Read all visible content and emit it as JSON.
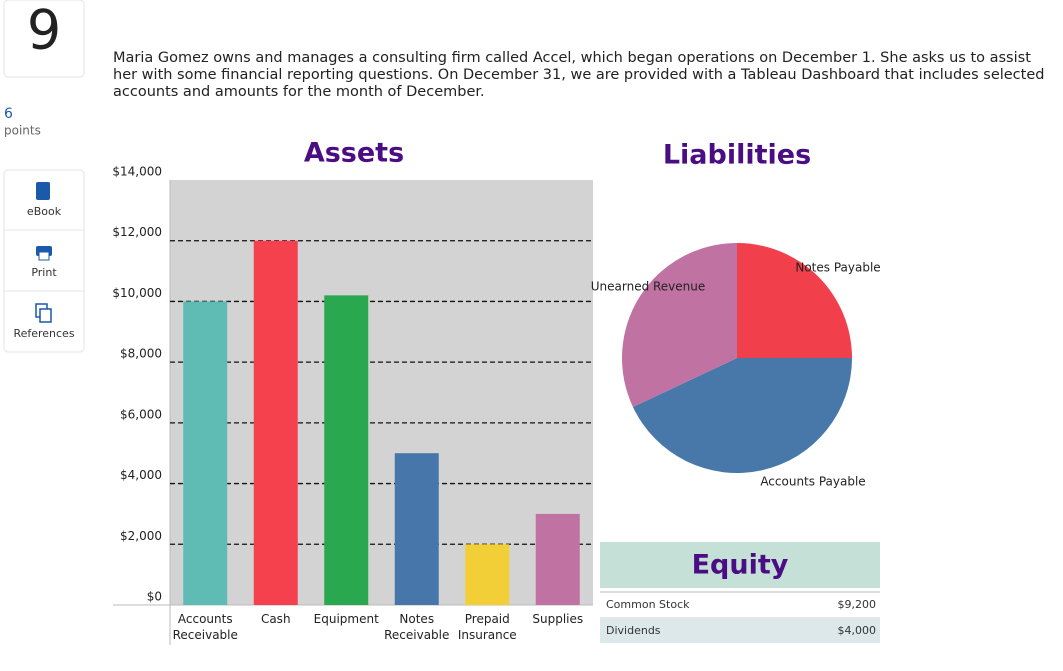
{
  "question": {
    "number": "9",
    "points_value": 6,
    "points_label": "points"
  },
  "tools": [
    "eBook",
    "Print",
    "References"
  ],
  "prompt": "Maria Gomez owns and manages a consulting firm called Accel, which began operations on December 1. She asks us to assist her with some financial reporting questions. On December 31, we are provided with a Tableau Dashboard that includes selected accounts and amounts for the month of December.",
  "chart_data": [
    {
      "type": "bar",
      "title": "Assets",
      "categories": [
        "Accounts Receivable",
        "Cash",
        "Equipment",
        "Notes Receivable",
        "Prepaid Insurance",
        "Supplies"
      ],
      "values": [
        10000,
        12000,
        10200,
        5000,
        2000,
        3000
      ],
      "colors": [
        "#5fbcb5",
        "#f5404e",
        "#2aa84f",
        "#4777aa",
        "#f2cf36",
        "#c072a3"
      ],
      "ylim": [
        0,
        14000
      ],
      "yticks": [
        {
          "value": 0,
          "label": "$0"
        },
        {
          "value": 2000,
          "label": "$2,000"
        },
        {
          "value": 4000,
          "label": "$4,000"
        },
        {
          "value": 6000,
          "label": "$6,000"
        },
        {
          "value": 8000,
          "label": "$8,000"
        },
        {
          "value": 10000,
          "label": "$10,000"
        },
        {
          "value": 12000,
          "label": "$12,000"
        },
        {
          "value": 14000,
          "label": "$14,000"
        }
      ],
      "grid": true
    },
    {
      "type": "pie",
      "title": "Liabilities",
      "categories": [
        "Notes Payable",
        "Accounts Payable",
        "Unearned Revenue"
      ],
      "values": [
        25,
        43,
        32
      ],
      "colors": [
        "#f13f4c",
        "#4878aa",
        "#c072a3"
      ]
    }
  ],
  "equity": {
    "title": "Equity",
    "rows": [
      [
        "Common Stock",
        "$9,200"
      ],
      [
        "Dividends",
        "$4,000"
      ]
    ]
  }
}
